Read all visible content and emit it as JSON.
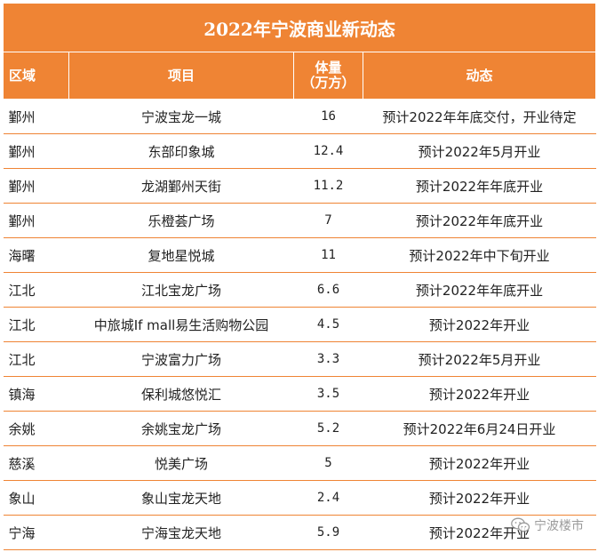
{
  "title": "2022年宁波商业新动态",
  "header": {
    "region": "区域",
    "project": "项目",
    "volume_line1": "体量",
    "volume_line2": "（万方）",
    "status": "动态"
  },
  "rows": [
    {
      "region": "鄞州",
      "project": "宁波宝龙一城",
      "volume": "16",
      "status": "预计2022年年底交付，开业待定"
    },
    {
      "region": "鄞州",
      "project": "东部印象城",
      "volume": "12.4",
      "status": "预计2022年5月开业"
    },
    {
      "region": "鄞州",
      "project": "龙湖鄞州天街",
      "volume": "11.2",
      "status": "预计2022年年底开业"
    },
    {
      "region": "鄞州",
      "project": "乐橙荟广场",
      "volume": "7",
      "status": "预计2022年年底开业"
    },
    {
      "region": "海曙",
      "project": "复地星悦城",
      "volume": "11",
      "status": "预计2022年中下旬开业"
    },
    {
      "region": "江北",
      "project": "江北宝龙广场",
      "volume": "6.6",
      "status": "预计2022年年底开业"
    },
    {
      "region": "江北",
      "project": "中旅城If mall易生活购物公园",
      "volume": "4.5",
      "status": "预计2022年开业"
    },
    {
      "region": "江北",
      "project": "宁波富力广场",
      "volume": "3.3",
      "status": "预计2022年5月开业"
    },
    {
      "region": "镇海",
      "project": "保利城悠悦汇",
      "volume": "3.5",
      "status": "预计2022年开业"
    },
    {
      "region": "余姚",
      "project": "余姚宝龙广场",
      "volume": "5.2",
      "status": "预计2022年6月24日开业"
    },
    {
      "region": "慈溪",
      "project": "悦美广场",
      "volume": "5",
      "status": "预计2022年开业"
    },
    {
      "region": "象山",
      "project": "象山宝龙天地",
      "volume": "2.4",
      "status": "预计2022年开业"
    },
    {
      "region": "宁海",
      "project": "宁海宝龙天地",
      "volume": "5.9",
      "status": "预计2022年开业"
    }
  ],
  "watermark": {
    "icon": "wechat-icon",
    "text": "宁波楼市"
  },
  "colors": {
    "accent": "#ef8434",
    "header_text": "#ffffff"
  }
}
